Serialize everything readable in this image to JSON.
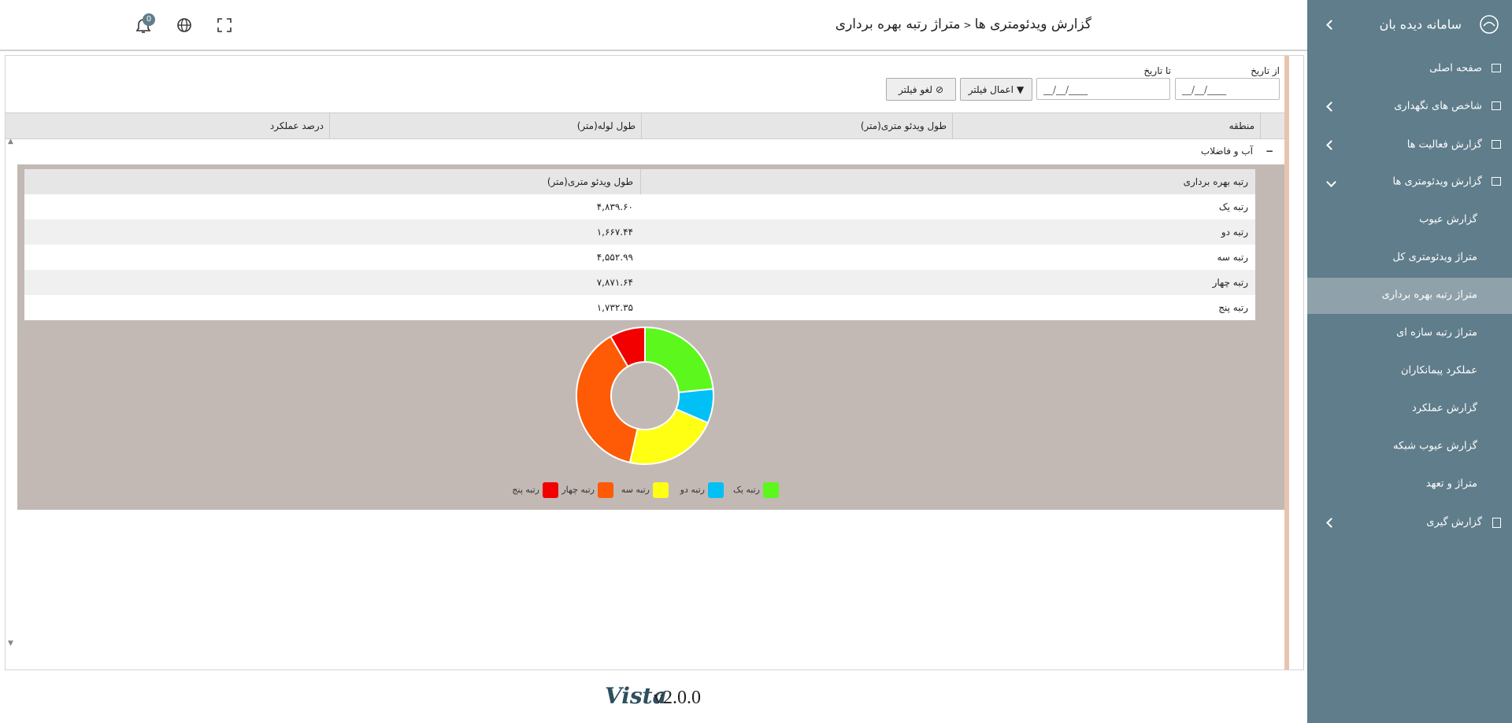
{
  "sidebar": {
    "title": "سامانه دیده بان",
    "menu": [
      "صفحه اصلی",
      "شاخص های نگهداری",
      "گزارش فعالیت ها",
      "گزارش ویدئومتری ها"
    ],
    "submenu": [
      "گزارش عیوب",
      "متراژ ویدئومتری کل",
      "متراژ رتبه بهره برداری",
      "متراژ رتبه سازه ای",
      "عملکرد پیمانکاران",
      "گزارش عملکرد",
      "گزارش عیوب شبکه",
      "متراژ و تعهد"
    ],
    "last": "گزارش گیری"
  },
  "header": {
    "breadcrumb": [
      "گزارش ویدئومتری ها",
      "متراژ رتبه بهره برداری"
    ],
    "badge": "0"
  },
  "filters": {
    "from_label": "از تاریخ",
    "to_label": "تا تاریخ",
    "from_placeholder": "__/__/____",
    "to_placeholder": "__/__/____",
    "apply": "اعمال فیلتر",
    "cancel": "لغو فیلتر"
  },
  "table": {
    "columns": [
      "منطقه",
      "طول ویدئو متری(متر)",
      "طول لوله(متر)",
      "درصد عملکرد"
    ],
    "group": "آب و فاضلاب"
  },
  "detail_table": {
    "columns": [
      "رتبه بهره برداری",
      "طول ویدئو متری(متر)"
    ],
    "rows": [
      [
        "رتبه یک",
        "۴,۸۳۹.۶۰"
      ],
      [
        "رتبه دو",
        "۱,۶۶۷.۴۴"
      ],
      [
        "رتبه سه",
        "۴,۵۵۲.۹۹"
      ],
      [
        "رتبه چهار",
        "۷,۸۷۱.۶۴"
      ],
      [
        "رتبه پنج",
        "۱,۷۳۲.۳۵"
      ]
    ]
  },
  "chart_data": {
    "type": "pie",
    "categories": [
      "رتبه یک",
      "رتبه دو",
      "رتبه سه",
      "رتبه چهار",
      "رتبه پنج"
    ],
    "values": [
      4839.6,
      1667.44,
      4552.99,
      7871.64,
      1732.35
    ],
    "colors": [
      "#5cf71c",
      "#00c0f5",
      "#ffff14",
      "#ff5a05",
      "#f20000"
    ]
  },
  "footer": {
    "logo": "Vista",
    "version": "v2.0.0"
  }
}
